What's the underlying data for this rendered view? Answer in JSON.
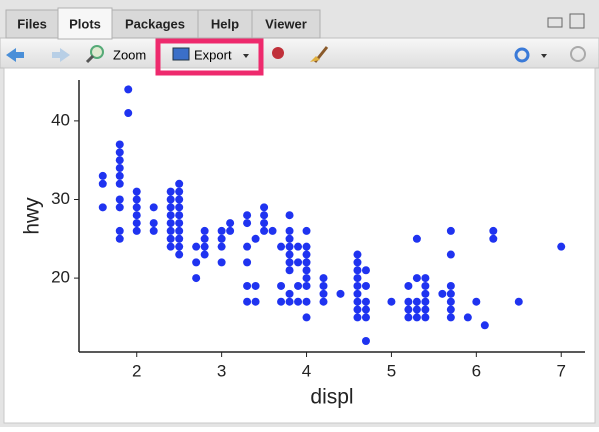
{
  "ui": {
    "tabs": [
      "Files",
      "Plots",
      "Packages",
      "Help",
      "Viewer"
    ],
    "active_tab": 1,
    "toolbar": {
      "zoom": "Zoom",
      "export": "Export"
    }
  },
  "chart_data": {
    "type": "scatter",
    "x_label": "displ",
    "y_label": "hwy",
    "color": "#1f33f0",
    "x": [
      1.6,
      1.6,
      1.6,
      1.8,
      1.8,
      1.8,
      1.8,
      1.8,
      1.8,
      1.8,
      1.8,
      1.8,
      1.8,
      1.9,
      1.9,
      2.0,
      2.0,
      2.0,
      2.0,
      2.0,
      2.0,
      2.2,
      2.2,
      2.2,
      2.4,
      2.4,
      2.4,
      2.4,
      2.4,
      2.4,
      2.4,
      2.4,
      2.5,
      2.5,
      2.5,
      2.5,
      2.5,
      2.5,
      2.5,
      2.5,
      2.5,
      2.5,
      2.7,
      2.7,
      2.7,
      2.8,
      2.8,
      2.8,
      2.8,
      3.0,
      3.0,
      3.0,
      3.0,
      3.1,
      3.1,
      3.3,
      3.3,
      3.3,
      3.3,
      3.3,
      3.3,
      3.4,
      3.4,
      3.4,
      3.5,
      3.5,
      3.5,
      3.5,
      3.6,
      3.7,
      3.7,
      3.7,
      3.8,
      3.8,
      3.8,
      3.8,
      3.8,
      3.8,
      3.8,
      3.8,
      3.8,
      3.9,
      3.9,
      3.9,
      3.9,
      4.0,
      4.0,
      4.0,
      4.0,
      4.0,
      4.0,
      4.0,
      4.0,
      4.0,
      4.2,
      4.2,
      4.2,
      4.2,
      4.4,
      4.6,
      4.6,
      4.6,
      4.6,
      4.6,
      4.6,
      4.6,
      4.6,
      4.6,
      4.7,
      4.7,
      4.7,
      4.7,
      4.7,
      4.7,
      5.0,
      5.2,
      5.2,
      5.2,
      5.2,
      5.3,
      5.3,
      5.3,
      5.3,
      5.3,
      5.4,
      5.4,
      5.4,
      5.4,
      5.4,
      5.4,
      5.6,
      5.7,
      5.7,
      5.7,
      5.7,
      5.7,
      5.7,
      5.7,
      5.9,
      6.0,
      6.1,
      6.2,
      6.2,
      6.5,
      7.0
    ],
    "y": [
      29,
      32,
      33,
      25,
      26,
      29,
      30,
      32,
      33,
      34,
      35,
      36,
      37,
      41,
      44,
      26,
      27,
      28,
      29,
      30,
      31,
      26,
      27,
      29,
      24,
      25,
      26,
      27,
      28,
      29,
      30,
      31,
      23,
      24,
      25,
      26,
      27,
      28,
      29,
      30,
      31,
      32,
      20,
      22,
      24,
      23,
      24,
      25,
      26,
      22,
      24,
      25,
      26,
      26,
      27,
      17,
      19,
      22,
      24,
      27,
      28,
      17,
      19,
      25,
      26,
      27,
      28,
      29,
      26,
      17,
      19,
      24,
      17,
      18,
      21,
      22,
      23,
      24,
      25,
      26,
      28,
      17,
      19,
      22,
      24,
      15,
      17,
      19,
      20,
      21,
      22,
      23,
      24,
      26,
      17,
      18,
      19,
      20,
      18,
      15,
      16,
      17,
      18,
      19,
      20,
      21,
      22,
      23,
      12,
      15,
      16,
      17,
      19,
      21,
      17,
      15,
      16,
      17,
      19,
      15,
      16,
      17,
      20,
      25,
      15,
      16,
      17,
      18,
      19,
      20,
      18,
      15,
      16,
      17,
      18,
      19,
      23,
      26,
      15,
      17,
      14,
      25,
      26,
      17,
      24
    ],
    "xlim": [
      1.32,
      7.28
    ],
    "ylim": [
      10.6,
      45.2
    ],
    "xticks": [
      2,
      3,
      4,
      5,
      6,
      7
    ],
    "yticks": [
      20,
      30,
      40
    ]
  }
}
